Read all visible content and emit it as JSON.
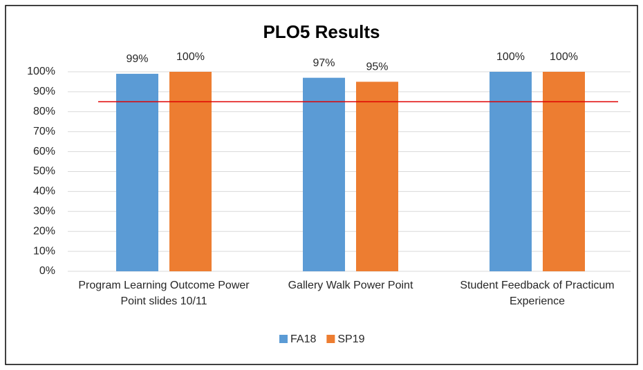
{
  "chart_data": {
    "type": "bar",
    "title": "PLO5 Results",
    "categories": [
      "Program Learning Outcome Power Point slides 10/11",
      "Gallery Walk Power Point",
      "Student Feedback of Practicum Experience"
    ],
    "series": [
      {
        "name": "FA18",
        "color": "#5b9bd5",
        "values": [
          99,
          97,
          100
        ],
        "value_labels": [
          "99%",
          "97%",
          "100%"
        ]
      },
      {
        "name": "SP19",
        "color": "#ed7d31",
        "values": [
          100,
          95,
          100
        ],
        "value_labels": [
          "100%",
          "95%",
          "100%"
        ]
      }
    ],
    "ylim": [
      0,
      100
    ],
    "yticks": [
      {
        "value": 0,
        "label": "0%"
      },
      {
        "value": 10,
        "label": "10%"
      },
      {
        "value": 20,
        "label": "20%"
      },
      {
        "value": 30,
        "label": "30%"
      },
      {
        "value": 40,
        "label": "40%"
      },
      {
        "value": 50,
        "label": "50%"
      },
      {
        "value": 60,
        "label": "60%"
      },
      {
        "value": 70,
        "label": "70%"
      },
      {
        "value": 80,
        "label": "80%"
      },
      {
        "value": 90,
        "label": "90%"
      },
      {
        "value": 100,
        "label": "100%"
      }
    ],
    "grid": true,
    "legend": "bottom",
    "reference_line": {
      "value": 85,
      "color": "#e00000"
    }
  }
}
